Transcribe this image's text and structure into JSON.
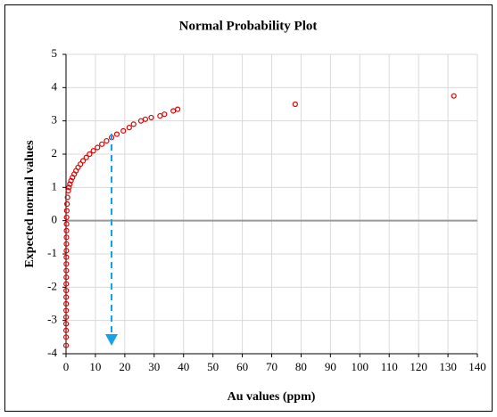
{
  "chart_data": {
    "type": "scatter",
    "title": "Normal Probability Plot",
    "x_label": "Au values (ppm)",
    "y_label": "Expected normal values",
    "x": [
      0.01,
      0.02,
      0.02,
      0.03,
      0.03,
      0.04,
      0.05,
      0.05,
      0.06,
      0.07,
      0.08,
      0.09,
      0.1,
      0.11,
      0.12,
      0.13,
      0.15,
      0.16,
      0.18,
      0.2,
      0.25,
      0.35,
      0.5,
      0.8,
      1.0,
      1.3,
      1.7,
      2.2,
      2.8,
      3.4,
      4.1,
      4.9,
      5.8,
      6.9,
      8.0,
      9.3,
      10.7,
      12.2,
      13.8,
      15.5,
      17.3,
      19.5,
      21.5,
      23,
      25.5,
      27,
      29,
      32,
      33.5,
      36.5,
      38,
      78,
      132
    ],
    "values": [
      -3.75,
      -3.5,
      -3.3,
      -3.1,
      -2.9,
      -2.7,
      -2.5,
      -2.3,
      -2.1,
      -1.9,
      -1.7,
      -1.5,
      -1.3,
      -1.1,
      -0.9,
      -0.7,
      -0.5,
      -0.3,
      -0.1,
      0.1,
      0.3,
      0.5,
      0.7,
      0.9,
      1.0,
      1.1,
      1.2,
      1.3,
      1.4,
      1.5,
      1.6,
      1.7,
      1.8,
      1.9,
      2.0,
      2.1,
      2.2,
      2.3,
      2.4,
      2.5,
      2.6,
      2.7,
      2.8,
      2.9,
      3.0,
      3.05,
      3.1,
      3.15,
      3.2,
      3.3,
      3.35,
      3.5,
      3.75
    ],
    "color": "#e00000",
    "xlim": [
      0,
      140
    ],
    "xticks": [
      0,
      10,
      20,
      30,
      40,
      50,
      60,
      70,
      80,
      90,
      100,
      110,
      120,
      130,
      140
    ],
    "ylim": [
      -4,
      5
    ],
    "yticks": [
      -4,
      -3,
      -2,
      -1,
      0,
      1,
      2,
      3,
      4,
      5
    ],
    "grid": true
  }
}
